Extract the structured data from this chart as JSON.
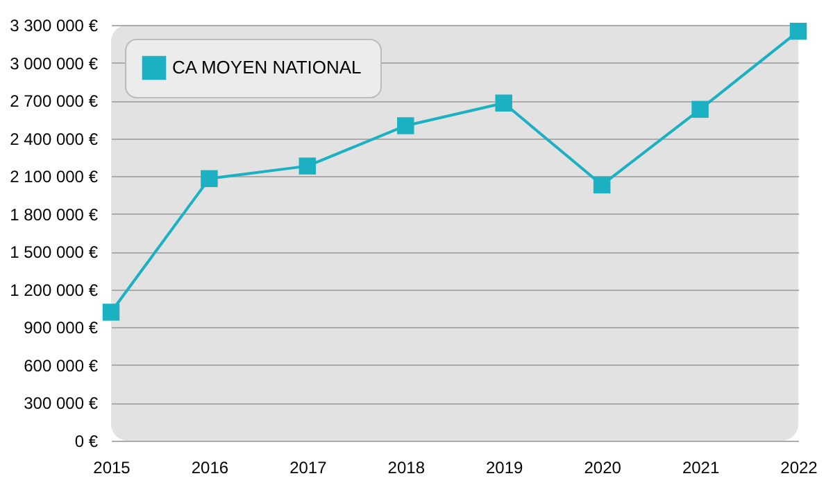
{
  "chart_data": {
    "type": "line",
    "categories": [
      "2015",
      "2016",
      "2017",
      "2018",
      "2019",
      "2020",
      "2021",
      "2022"
    ],
    "series": [
      {
        "name": "CA MOYEN NATIONAL",
        "color": "#1bb1c2",
        "values": [
          1020000,
          2080000,
          2180000,
          2500000,
          2680000,
          2030000,
          2630000,
          3250000
        ]
      }
    ],
    "ylim": [
      0,
      3300000
    ],
    "yticks": [
      {
        "value": 0,
        "label": "0 €"
      },
      {
        "value": 300000,
        "label": "300 000 €"
      },
      {
        "value": 600000,
        "label": "600 000 €"
      },
      {
        "value": 900000,
        "label": "900 000 €"
      },
      {
        "value": 1200000,
        "label": "1 200 000 €"
      },
      {
        "value": 1500000,
        "label": "1 500 000 €"
      },
      {
        "value": 1800000,
        "label": "1 800 000 €"
      },
      {
        "value": 2100000,
        "label": "2 100 000 €"
      },
      {
        "value": 2400000,
        "label": "2 400 000 €"
      },
      {
        "value": 2700000,
        "label": "2 700 000 €"
      },
      {
        "value": 3000000,
        "label": "3 000 000 €"
      },
      {
        "value": 3300000,
        "label": "3 300 000 €"
      }
    ],
    "grid": "y",
    "legend": "top left",
    "marker": "square",
    "line_style": "solid"
  }
}
